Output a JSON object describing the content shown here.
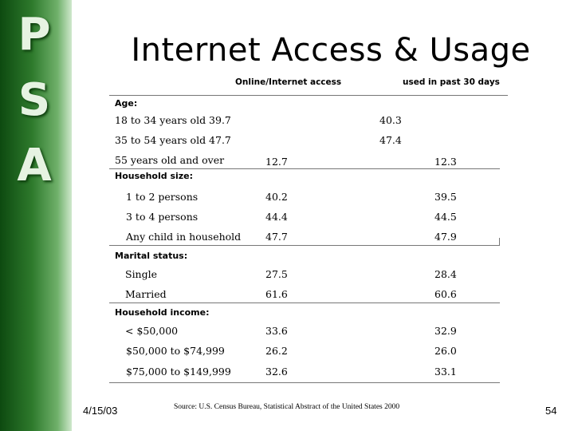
{
  "sidebar": {
    "letters": [
      "P",
      "S",
      "A"
    ]
  },
  "title": "Internet Access & Usage",
  "columns": {
    "access": "Online/Internet access",
    "usage": "used in past 30 days"
  },
  "sections": {
    "age": {
      "label": "Age:",
      "rows": [
        {
          "label": "18 to 34 years old 39.7",
          "access": "",
          "usage": "40.3"
        },
        {
          "label": "35 to 54 years old 47.7",
          "access": "",
          "usage": "47.4"
        },
        {
          "label": "55 years old and over",
          "access": "12.7",
          "usage": "12.3"
        }
      ]
    },
    "household_size": {
      "label": "Household size:",
      "rows": [
        {
          "label": "1 to 2 persons",
          "access": "40.2",
          "usage": "39.5"
        },
        {
          "label": "3 to 4 persons",
          "access": "44.4",
          "usage": "44.5"
        },
        {
          "label": "Any child in household",
          "access": "47.7",
          "usage": "47.9"
        }
      ]
    },
    "marital_status": {
      "label": "Marital status:",
      "rows": [
        {
          "label": "Single",
          "access": "27.5",
          "usage": "28.4"
        },
        {
          "label": "Married",
          "access": "61.6",
          "usage": "60.6"
        }
      ]
    },
    "household_income": {
      "label": "Household income:",
      "rows": [
        {
          "label": "< $50,000",
          "access": "33.6",
          "usage": "32.9"
        },
        {
          "label": "$50,000 to $74,999",
          "access": "26.2",
          "usage": "26.0"
        },
        {
          "label": "$75,000 to $149,999",
          "access": "32.6",
          "usage": "33.1"
        }
      ]
    }
  },
  "footer": {
    "date": "4/15/03",
    "source": "Source: U.S. Census Bureau, Statistical Abstract of the United States 2000",
    "page_number": "54"
  }
}
